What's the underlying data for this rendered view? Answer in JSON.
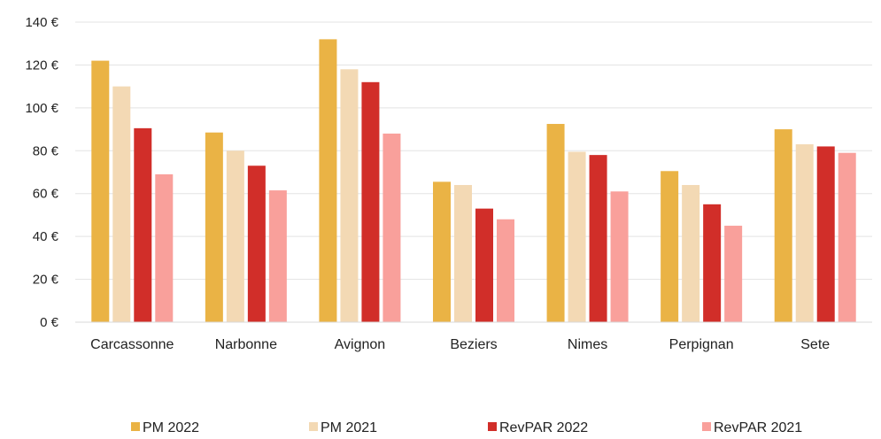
{
  "chart_data": {
    "type": "bar",
    "categories": [
      "Carcassonne",
      "Narbonne",
      "Avignon",
      "Beziers",
      "Nimes",
      "Perpignan",
      "Sete"
    ],
    "series": [
      {
        "name": "PM 2022",
        "color": "#EAB345",
        "values": [
          122,
          88.5,
          132,
          65.5,
          92.5,
          70.5,
          90
        ]
      },
      {
        "name": "PM 2021",
        "color": "#F3D9B4",
        "values": [
          110,
          80,
          118,
          64,
          79.5,
          64,
          83
        ]
      },
      {
        "name": "RevPAR 2022",
        "color": "#D12E29",
        "values": [
          90.5,
          73,
          112,
          53,
          78,
          55,
          82
        ]
      },
      {
        "name": "RevPAR 2021",
        "color": "#F9A09B",
        "values": [
          69,
          61.5,
          88,
          48,
          61,
          45,
          79
        ]
      }
    ],
    "y_ticks": [
      "0 €",
      "20 €",
      "40 €",
      "60 €",
      "80 €",
      "100 €",
      "120 €",
      "140 €"
    ],
    "ylim": [
      0,
      140
    ],
    "y_step": 20,
    "grid": true,
    "legend_position": "bottom",
    "title": "",
    "xlabel": "",
    "ylabel": ""
  }
}
